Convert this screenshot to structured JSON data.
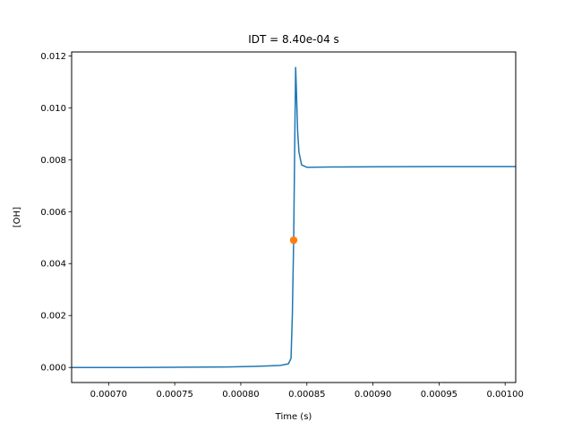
{
  "chart_data": {
    "type": "line",
    "title": "IDT = 8.40e-04 s",
    "xlabel": "Time (s)",
    "ylabel": "[OH]",
    "xlim": [
      0.000672,
      0.001008
    ],
    "ylim": [
      -0.00058,
      0.01215
    ],
    "xticks": [
      0.0007,
      0.00075,
      0.0008,
      0.00085,
      0.0009,
      0.00095,
      0.001
    ],
    "xtick_labels": [
      "0.00070",
      "0.00075",
      "0.00080",
      "0.00085",
      "0.00090",
      "0.00095",
      "0.00100"
    ],
    "yticks": [
      0.0,
      0.002,
      0.004,
      0.006,
      0.008,
      0.01,
      0.012
    ],
    "ytick_labels": [
      "0.000",
      "0.002",
      "0.004",
      "0.006",
      "0.008",
      "0.010",
      "0.012"
    ],
    "grid": false,
    "series": [
      {
        "color": "#1f77b4",
        "points": [
          [
            0.000672,
            0.0
          ],
          [
            0.00072,
            0.0
          ],
          [
            0.00076,
            1e-05
          ],
          [
            0.00079,
            2e-05
          ],
          [
            0.00081,
            4e-05
          ],
          [
            0.00082,
            6e-05
          ],
          [
            0.00083,
            8e-05
          ],
          [
            0.000836,
            0.00014
          ],
          [
            0.000838,
            0.00035
          ],
          [
            0.000839,
            0.002
          ],
          [
            0.00084,
            0.0049
          ],
          [
            0.000841,
            0.0095
          ],
          [
            0.0008415,
            0.01155
          ],
          [
            0.000842,
            0.0108
          ],
          [
            0.000843,
            0.0091
          ],
          [
            0.000844,
            0.0083
          ],
          [
            0.000846,
            0.0078
          ],
          [
            0.00085,
            0.00771
          ],
          [
            0.00087,
            0.00772
          ],
          [
            0.0009,
            0.00773
          ],
          [
            0.00095,
            0.00774
          ],
          [
            0.001008,
            0.00774
          ]
        ]
      }
    ],
    "markers": [
      {
        "color": "#ff7f0e",
        "x": 0.00084,
        "y": 0.0049
      }
    ]
  }
}
